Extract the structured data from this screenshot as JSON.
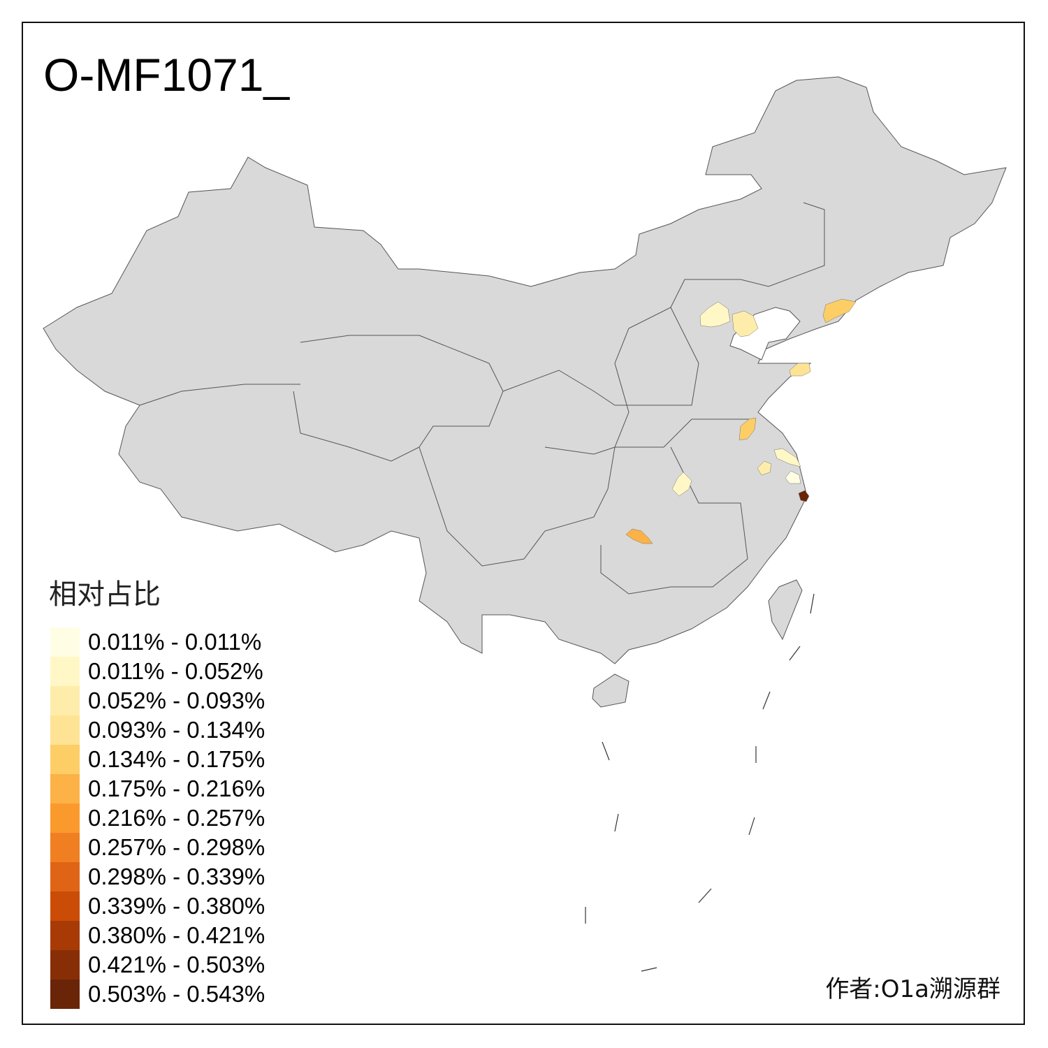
{
  "title": "O-MF1071_",
  "legend": {
    "title": "相对占比",
    "items": [
      {
        "label": "0.011% - 0.011%",
        "color": "#fffde4"
      },
      {
        "label": "0.011% - 0.052%",
        "color": "#fff7c6"
      },
      {
        "label": "0.052% - 0.093%",
        "color": "#feedaa"
      },
      {
        "label": "0.093% - 0.134%",
        "color": "#fee394"
      },
      {
        "label": "0.134% - 0.175%",
        "color": "#fdcd66"
      },
      {
        "label": "0.175% - 0.216%",
        "color": "#fcb246"
      },
      {
        "label": "0.216% - 0.257%",
        "color": "#fb9a2c"
      },
      {
        "label": "0.257% - 0.298%",
        "color": "#f07f22"
      },
      {
        "label": "0.298% - 0.339%",
        "color": "#e06415"
      },
      {
        "label": "0.339% - 0.380%",
        "color": "#ca4c07"
      },
      {
        "label": "0.380% - 0.421%",
        "color": "#a83a05"
      },
      {
        "label": "0.421% - 0.503%",
        "color": "#882e06"
      },
      {
        "label": "0.503% - 0.543%",
        "color": "#6a2408"
      }
    ]
  },
  "map": {
    "base_color": "#d9d9d9",
    "border_color": "#555555"
  },
  "author": "作者:O1a溯源群"
}
